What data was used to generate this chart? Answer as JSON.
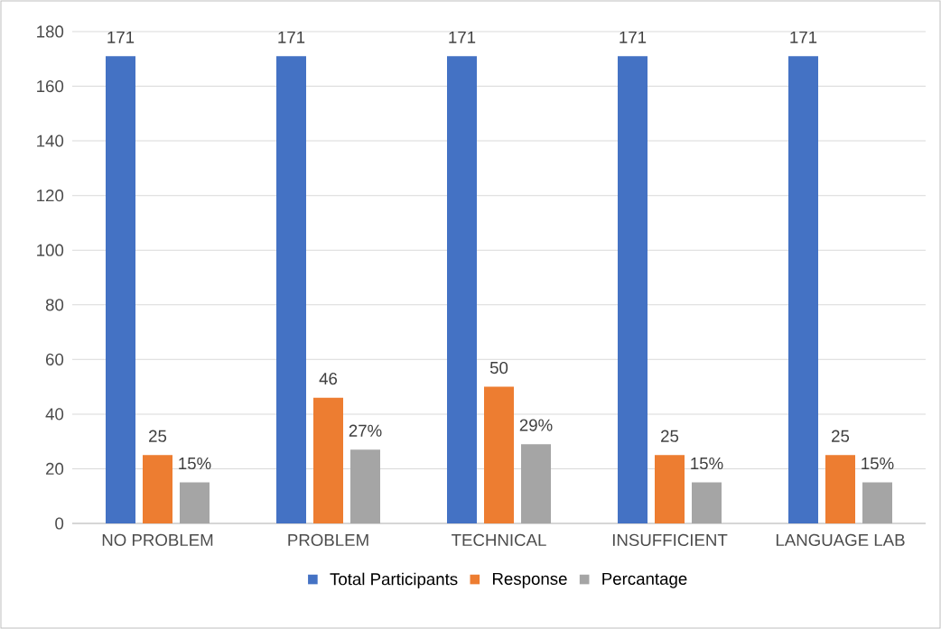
{
  "chart_data": {
    "type": "bar",
    "categories": [
      "NO PROBLEM",
      "PROBLEM",
      "TECHNICAL",
      "INSUFFICIENT",
      "LANGUAGE LAB"
    ],
    "series": [
      {
        "name": "Total Participants",
        "color": "#4472c4",
        "values": [
          171,
          171,
          171,
          171,
          171
        ],
        "value_labels": [
          "171",
          "171",
          "171",
          "171",
          "171"
        ]
      },
      {
        "name": "Response",
        "color": "#ed7d31",
        "values": [
          25,
          46,
          50,
          25,
          25
        ],
        "value_labels": [
          "25",
          "46",
          "50",
          "25",
          "25"
        ]
      },
      {
        "name": "Percantage",
        "color": "#a5a5a5",
        "values": [
          15,
          27,
          29,
          15,
          15
        ],
        "value_labels": [
          "15%",
          "27%",
          "29%",
          "15%",
          "15%"
        ]
      }
    ],
    "ylim": [
      0,
      180
    ],
    "yticks": [
      0,
      20,
      40,
      60,
      80,
      100,
      120,
      140,
      160,
      180
    ],
    "grid": "y",
    "legend": "bottom"
  }
}
